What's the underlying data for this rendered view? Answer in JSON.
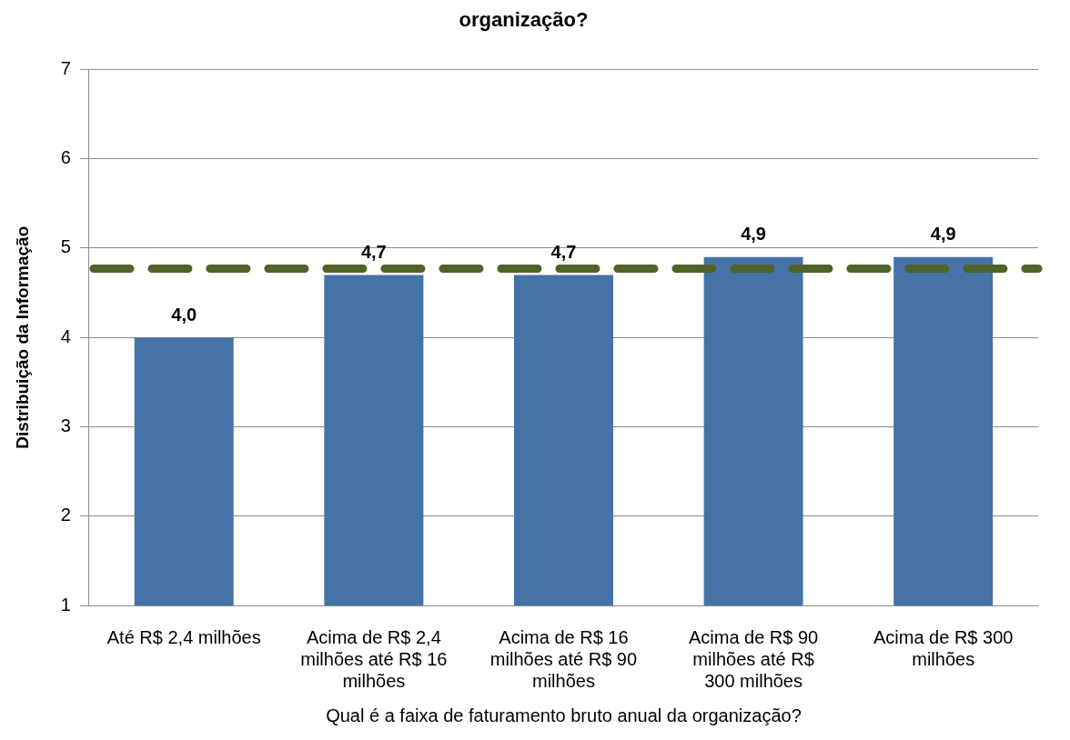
{
  "chart_data": {
    "type": "bar",
    "title": "organização?",
    "xlabel": "Qual é a faixa de faturamento bruto anual da organização?",
    "ylabel": "Distribuição da Informação",
    "categories": [
      "Até R$ 2,4 milhões",
      "Acima de R$ 2,4 milhões até R$ 16 milhões",
      "Acima de R$ 16 milhões até R$ 90 milhões",
      "Acima de R$ 90 milhões até R$ 300 milhões",
      "Acima de R$ 300 milhões"
    ],
    "values": [
      4.0,
      4.7,
      4.7,
      4.9,
      4.9
    ],
    "color": "#4573a7",
    "value_labels": [
      "4,0",
      "4,7",
      "4,7",
      "4,9",
      "4,9"
    ],
    "ylim": [
      1,
      7
    ],
    "yticks": [
      1,
      2,
      3,
      4,
      5,
      6,
      7
    ],
    "grid": "y",
    "legend": false,
    "ref_lines": [
      {
        "axis": "y",
        "value": 4.77,
        "color": "#4f6228",
        "line_style": "dashed"
      }
    ]
  }
}
